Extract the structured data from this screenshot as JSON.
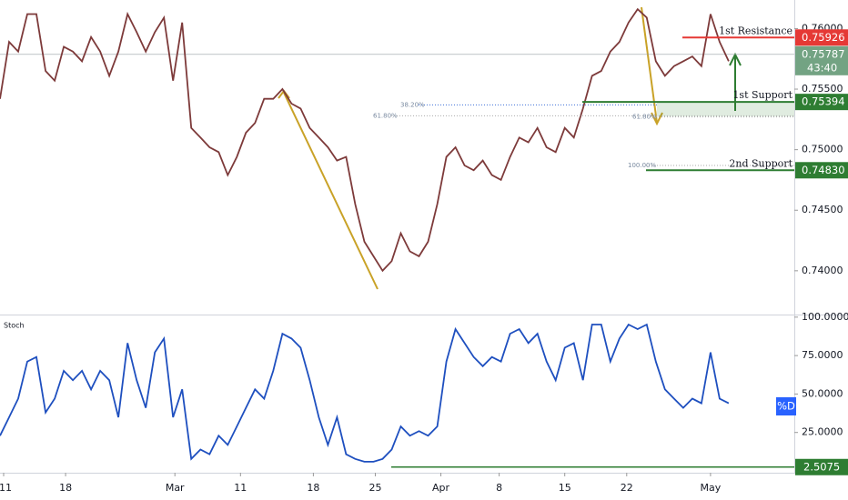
{
  "chart_data": [
    {
      "type": "line",
      "x": [
        0,
        2.5,
        5,
        7.5,
        10,
        12.5,
        15,
        17.5,
        20,
        22.5,
        25,
        27.5,
        30,
        32.5,
        35,
        37.5,
        40,
        42.5,
        45,
        47.5,
        50,
        52.5,
        55,
        57.5,
        60,
        62.5,
        65,
        67.5,
        70,
        72.5,
        75,
        77.5,
        80,
        82.5,
        85,
        87.5,
        90,
        92.5,
        95,
        97.5,
        100,
        102.5,
        105,
        107.5,
        110,
        112.5,
        115,
        117.5,
        120,
        122.5,
        125,
        127.5,
        130,
        132.5,
        135,
        137.5,
        140,
        142.5,
        145,
        147.5,
        150,
        152.5,
        155,
        157.5,
        160,
        162.5,
        165,
        167.5,
        170,
        172.5,
        175,
        177.5,
        180,
        182.5,
        185,
        187.5,
        190,
        192.5,
        195,
        197.5,
        200
      ],
      "series": [
        {
          "color": "#7d3a3a",
          "values": [
            0.7542,
            0.7589,
            0.7581,
            0.7612,
            0.7612,
            0.7565,
            0.7557,
            0.7585,
            0.7581,
            0.7573,
            0.7593,
            0.7581,
            0.7561,
            0.7581,
            0.7612,
            0.7597,
            0.7581,
            0.7597,
            0.7609,
            0.7557,
            0.7605,
            0.7518,
            0.751,
            0.7502,
            0.7498,
            0.7479,
            0.7494,
            0.7514,
            0.7522,
            0.7542,
            0.7542,
            0.755,
            0.7538,
            0.7534,
            0.7518,
            0.751,
            0.7502,
            0.7491,
            0.7494,
            0.7455,
            0.7424,
            0.7412,
            0.74,
            0.7408,
            0.7431,
            0.7416,
            0.7412,
            0.7424,
            0.7455,
            0.7494,
            0.7502,
            0.7487,
            0.7483,
            0.7491,
            0.7479,
            0.7475,
            0.7494,
            0.751,
            0.7506,
            0.7518,
            0.7502,
            0.7498,
            0.7518,
            0.751,
            0.7534,
            0.7561,
            0.7565,
            0.7581,
            0.7589,
            0.7605,
            0.7616,
            0.7609,
            0.7573,
            0.7561,
            0.7569,
            0.7573,
            0.7577,
            0.7569,
            0.7612,
            0.7589,
            0.7573
          ]
        }
      ],
      "xlim": [
        0,
        218
      ],
      "xticks": [
        {
          "value": 1,
          "label": "11"
        },
        {
          "value": 18,
          "label": "18"
        },
        {
          "value": 48,
          "label": "Mar"
        },
        {
          "value": 66,
          "label": "11"
        },
        {
          "value": 86,
          "label": "18"
        },
        {
          "value": 103,
          "label": "25"
        },
        {
          "value": 121,
          "label": "Apr"
        },
        {
          "value": 137,
          "label": "8"
        },
        {
          "value": 155,
          "label": "15"
        },
        {
          "value": 172,
          "label": "22"
        },
        {
          "value": 195,
          "label": "May"
        }
      ],
      "ylim": [
        0.73646,
        0.76236
      ],
      "yticks": [
        {
          "value": 0.74,
          "label": "0.74000"
        },
        {
          "value": 0.745,
          "label": "0.74500"
        },
        {
          "value": 0.75,
          "label": "0.75000"
        },
        {
          "value": 0.755,
          "label": "0.75500"
        },
        {
          "value": 0.76,
          "label": "0.76000"
        }
      ],
      "levels": [
        {
          "label": "1st Resistance",
          "value": 0.75926,
          "color": "#e53935"
        },
        {
          "label": "1st Support",
          "value": 0.75394,
          "color": "#2e7d32"
        },
        {
          "label": "2nd Support",
          "value": 0.7483,
          "value_label": "0.74830",
          "color": "#2e7d32"
        }
      ],
      "current": {
        "value": 0.75787,
        "countdown": "43:40",
        "color": "#73a383"
      },
      "fib_labels": [
        {
          "text": "38.20%",
          "price": 0.7537
        },
        {
          "text": "61.80%",
          "price": 0.7528
        },
        {
          "text": "61.80%",
          "price": 0.7527
        },
        {
          "text": "100.00%",
          "price": 0.7487
        }
      ]
    },
    {
      "type": "line",
      "title": "Stoch",
      "series": [
        {
          "name": "%D",
          "color": "#1e4fbf",
          "values": [
            22.9,
            34.9,
            47,
            71.1,
            74.1,
            38,
            47,
            65.1,
            59,
            65.1,
            53,
            65.1,
            59,
            34.9,
            83.1,
            59,
            41,
            77.1,
            86.1,
            34.9,
            53,
            7.8,
            13.9,
            10.8,
            22.9,
            16.9,
            28.9,
            41,
            53,
            47,
            65.1,
            89.2,
            86.1,
            80.1,
            59,
            34.9,
            16.9,
            34.9,
            10.8,
            7.8,
            6,
            6,
            7.8,
            13.9,
            28.9,
            22.9,
            25.9,
            22.9,
            28.9,
            71.1,
            92.2,
            83.1,
            74.1,
            68.1,
            74.1,
            71.1,
            89.2,
            92.2,
            83.1,
            89.2,
            71.1,
            59,
            80.1,
            83.1,
            59,
            95.2,
            95.2,
            71.1,
            86.1,
            95.2,
            92.2,
            95.2,
            71.1,
            53,
            47,
            41,
            47,
            44,
            77.1,
            47,
            44
          ]
        }
      ],
      "ylim": [
        0,
        100.5
      ],
      "yticks": [
        {
          "value": 100,
          "label": "100.0000"
        },
        {
          "value": 75,
          "label": "75.0000"
        },
        {
          "value": 50,
          "label": "50.0000"
        },
        {
          "value": 25,
          "label": "25.0000"
        }
      ],
      "level": {
        "value": 2.5075,
        "color": "#2e7d32"
      }
    }
  ]
}
